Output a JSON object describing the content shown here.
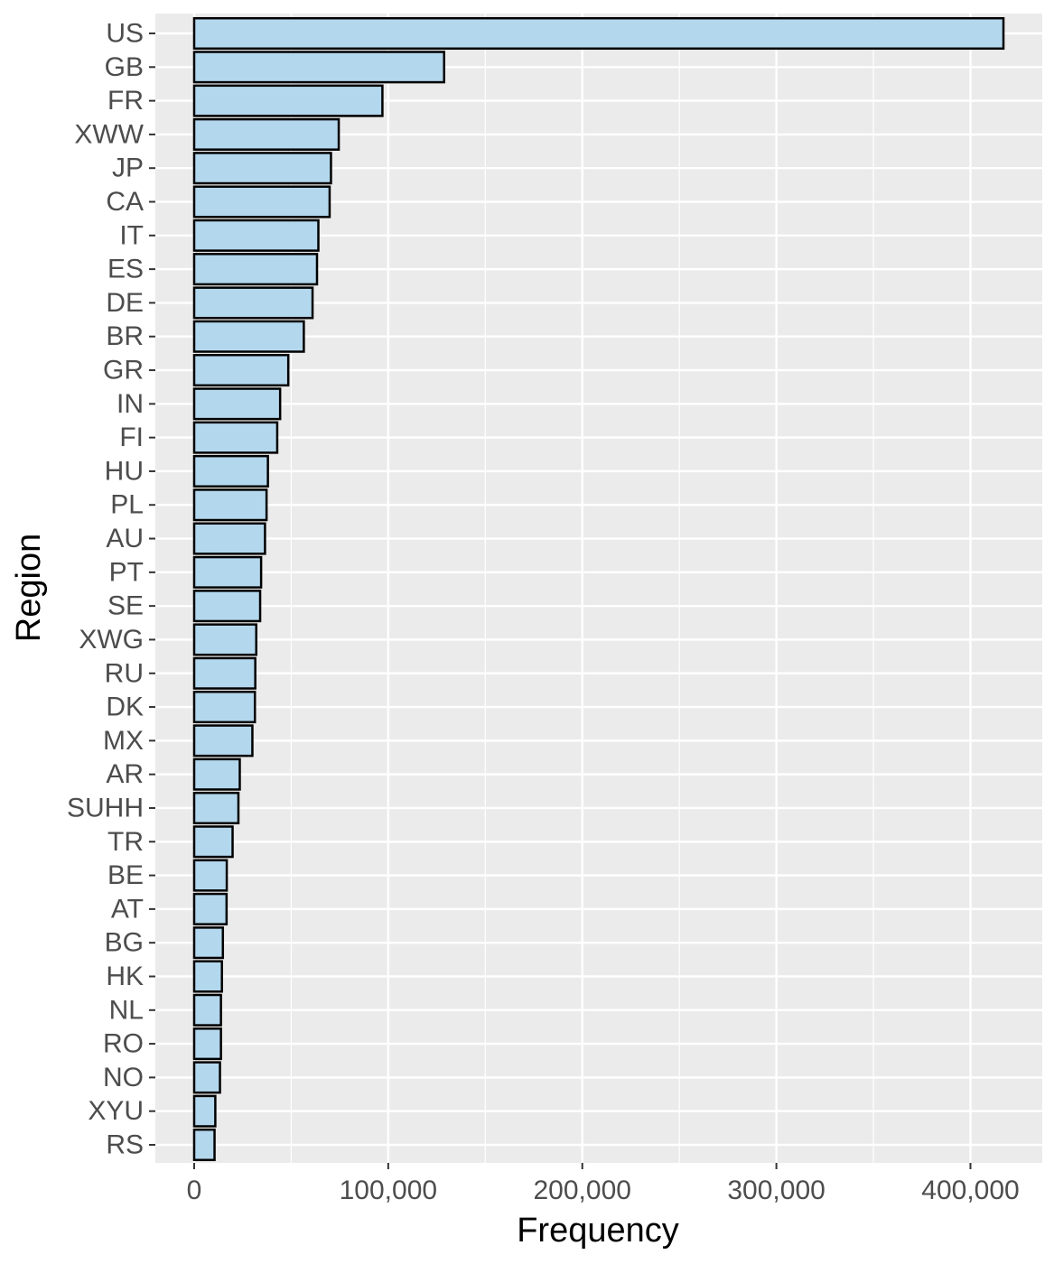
{
  "chart_data": {
    "type": "bar",
    "orientation": "horizontal",
    "title": "",
    "xlabel": "Frequency",
    "ylabel": "Region",
    "categories": [
      "US",
      "GB",
      "FR",
      "XWW",
      "JP",
      "CA",
      "IT",
      "ES",
      "DE",
      "BR",
      "GR",
      "IN",
      "FI",
      "HU",
      "PL",
      "AU",
      "PT",
      "SE",
      "XWG",
      "RU",
      "DK",
      "MX",
      "AR",
      "SUHH",
      "TR",
      "BE",
      "AT",
      "BG",
      "HK",
      "NL",
      "RO",
      "NO",
      "XYU",
      "RS"
    ],
    "values": [
      417000,
      128800,
      97000,
      74500,
      70500,
      69800,
      64000,
      63300,
      61000,
      56500,
      48500,
      44300,
      42800,
      38000,
      37300,
      36500,
      34500,
      34000,
      32000,
      31500,
      31300,
      30000,
      23500,
      22800,
      19800,
      16800,
      16700,
      14800,
      14300,
      13800,
      13800,
      13300,
      10900,
      10500
    ],
    "xlim": [
      -20000,
      437000
    ],
    "xticks": [
      0,
      100000,
      200000,
      300000,
      400000
    ],
    "xtick_labels": [
      "0",
      "100,000",
      "200,000",
      "300,000",
      "400,000"
    ],
    "grid": true,
    "bar_fill": "#b3d7ed",
    "bar_stroke": "#000000",
    "panel_background": "#ebebeb",
    "gridline_color": "#ffffff"
  }
}
